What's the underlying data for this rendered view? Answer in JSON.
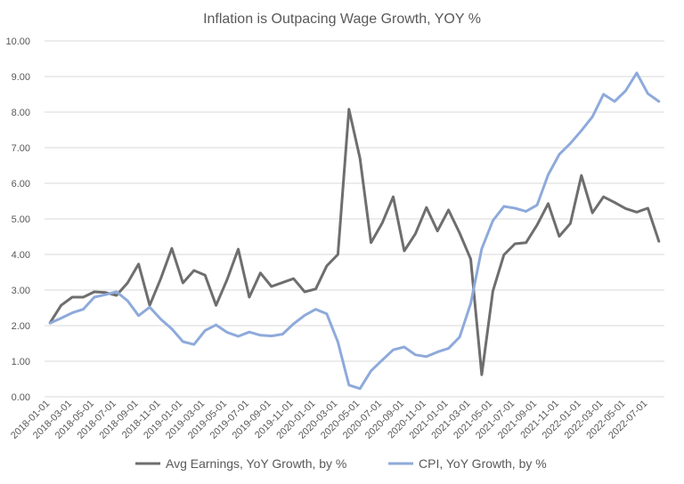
{
  "chart_data": {
    "type": "line",
    "title": "Inflation is Outpacing Wage Growth, YOY %",
    "xlabel": "",
    "ylabel": "",
    "ylim": [
      0,
      10
    ],
    "y_ticks": [
      "0.00",
      "1.00",
      "2.00",
      "3.00",
      "4.00",
      "5.00",
      "6.00",
      "7.00",
      "8.00",
      "9.00",
      "10.00"
    ],
    "x": [
      "2018-01-01",
      "2018-02-01",
      "2018-03-01",
      "2018-04-01",
      "2018-05-01",
      "2018-06-01",
      "2018-07-01",
      "2018-08-01",
      "2018-09-01",
      "2018-10-01",
      "2018-11-01",
      "2018-12-01",
      "2019-01-01",
      "2019-02-01",
      "2019-03-01",
      "2019-04-01",
      "2019-05-01",
      "2019-06-01",
      "2019-07-01",
      "2019-08-01",
      "2019-09-01",
      "2019-10-01",
      "2019-11-01",
      "2019-12-01",
      "2020-01-01",
      "2020-02-01",
      "2020-03-01",
      "2020-04-01",
      "2020-05-01",
      "2020-06-01",
      "2020-07-01",
      "2020-08-01",
      "2020-09-01",
      "2020-10-01",
      "2020-11-01",
      "2020-12-01",
      "2021-01-01",
      "2021-02-01",
      "2021-03-01",
      "2021-04-01",
      "2021-05-01",
      "2021-06-01",
      "2021-07-01",
      "2021-08-01",
      "2021-09-01",
      "2021-10-01",
      "2021-11-01",
      "2021-12-01",
      "2022-01-01",
      "2022-02-01",
      "2022-03-01",
      "2022-04-01",
      "2022-05-01",
      "2022-06-01",
      "2022-07-01",
      "2022-08-01"
    ],
    "x_tick_labels": [
      "2018-01-01",
      "2018-03-01",
      "2018-05-01",
      "2018-07-01",
      "2018-09-01",
      "2018-11-01",
      "2019-01-01",
      "2019-03-01",
      "2019-05-01",
      "2019-07-01",
      "2019-09-01",
      "2019-11-01",
      "2020-01-01",
      "2020-03-01",
      "2020-05-01",
      "2020-07-01",
      "2020-09-01",
      "2020-11-01",
      "2021-01-01",
      "2021-03-01",
      "2021-05-01",
      "2021-07-01",
      "2021-09-01",
      "2021-11-01",
      "2022-01-01",
      "2022-03-01",
      "2022-05-01",
      "2022-07-01"
    ],
    "series": [
      {
        "name": "Avg Earnings, YoY Growth, by %",
        "color": "#6e6e6e",
        "values": [
          2.08,
          2.57,
          2.8,
          2.8,
          2.95,
          2.93,
          2.85,
          3.2,
          3.73,
          2.57,
          3.32,
          4.17,
          3.2,
          3.55,
          3.42,
          2.57,
          3.3,
          4.15,
          2.8,
          3.48,
          3.1,
          3.21,
          3.32,
          2.95,
          3.03,
          3.68,
          4.0,
          8.08,
          6.7,
          4.33,
          4.88,
          5.62,
          4.1,
          4.58,
          5.32,
          4.66,
          5.25,
          4.6,
          3.87,
          0.62,
          2.97,
          3.99,
          4.3,
          4.33,
          4.83,
          5.43,
          4.51,
          4.87,
          6.22,
          5.17,
          5.62,
          5.46,
          5.29,
          5.19,
          5.3,
          4.37
        ]
      },
      {
        "name": "CPI, YoY Growth, by %",
        "color": "#8eaadb",
        "values": [
          2.07,
          2.21,
          2.36,
          2.46,
          2.8,
          2.87,
          2.95,
          2.7,
          2.28,
          2.52,
          2.18,
          1.91,
          1.55,
          1.47,
          1.86,
          2.02,
          1.81,
          1.7,
          1.82,
          1.73,
          1.71,
          1.76,
          2.05,
          2.29,
          2.46,
          2.33,
          1.54,
          0.33,
          0.23,
          0.73,
          1.03,
          1.32,
          1.4,
          1.18,
          1.13,
          1.26,
          1.36,
          1.68,
          2.62,
          4.16,
          4.95,
          5.35,
          5.3,
          5.21,
          5.39,
          6.24,
          6.81,
          7.12,
          7.48,
          7.87,
          8.5,
          8.3,
          8.6,
          9.1,
          8.52,
          8.3
        ]
      }
    ],
    "legend_position": "bottom",
    "grid": true
  }
}
